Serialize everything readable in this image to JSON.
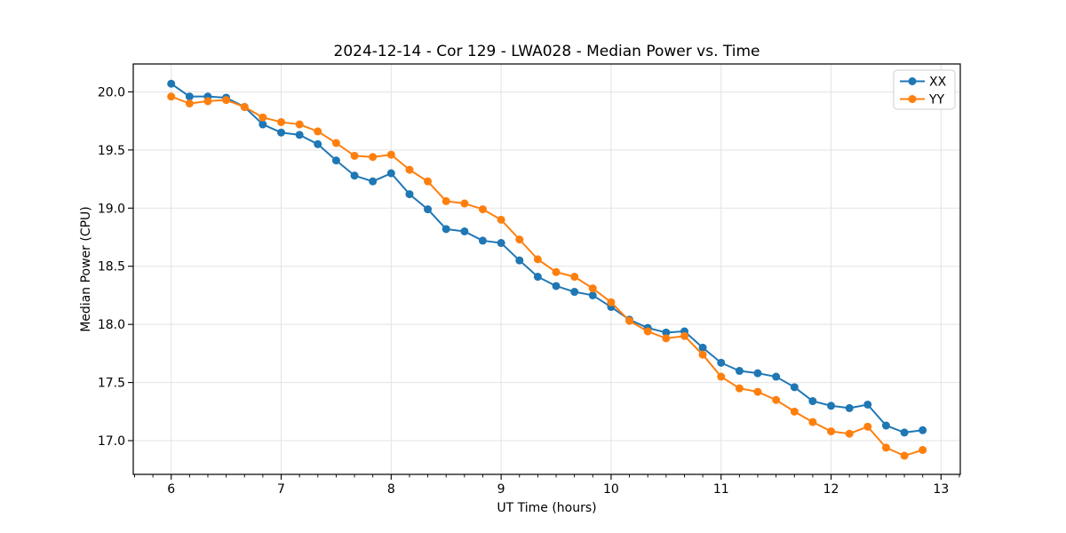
{
  "chart_data": {
    "type": "line",
    "title": "2024-12-14 - Cor 129 - LWA028 - Median Power vs. Time",
    "xlabel": "UT Time (hours)",
    "ylabel": "Median Power (CPU)",
    "xlim": [
      5.655,
      13.175
    ],
    "ylim": [
      16.71,
      20.24
    ],
    "xticks": [
      6,
      7,
      8,
      9,
      10,
      11,
      12,
      13
    ],
    "yticks": [
      17.0,
      17.5,
      18.0,
      18.5,
      19.0,
      19.5,
      20.0
    ],
    "x_minor_interval": 0.166667,
    "grid": "major-only",
    "grid_color": "#e3e3e3",
    "spine_color": "#000000",
    "legend_position": "upper-right",
    "x": [
      6.0,
      6.167,
      6.333,
      6.5,
      6.667,
      6.833,
      7.0,
      7.167,
      7.333,
      7.5,
      7.667,
      7.833,
      8.0,
      8.167,
      8.333,
      8.5,
      8.667,
      8.833,
      9.0,
      9.167,
      9.333,
      9.5,
      9.667,
      9.833,
      10.0,
      10.167,
      10.333,
      10.5,
      10.667,
      10.833,
      11.0,
      11.167,
      11.333,
      11.5,
      11.667,
      11.833,
      12.0,
      12.167,
      12.333,
      12.5,
      12.667,
      12.833
    ],
    "series": [
      {
        "name": "XX",
        "color": "#1f77b4",
        "marker": "circle",
        "values": [
          20.07,
          19.96,
          19.96,
          19.95,
          19.87,
          19.72,
          19.65,
          19.63,
          19.55,
          19.41,
          19.28,
          19.23,
          19.3,
          19.12,
          18.99,
          18.82,
          18.8,
          18.72,
          18.7,
          18.55,
          18.41,
          18.33,
          18.28,
          18.25,
          18.15,
          18.04,
          17.97,
          17.93,
          17.94,
          17.8,
          17.67,
          17.6,
          17.58,
          17.55,
          17.46,
          17.34,
          17.3,
          17.28,
          17.31,
          17.13,
          17.07,
          17.09
        ]
      },
      {
        "name": "YY",
        "color": "#ff7f0e",
        "marker": "circle",
        "values": [
          19.96,
          19.9,
          19.92,
          19.93,
          19.87,
          19.78,
          19.74,
          19.72,
          19.66,
          19.56,
          19.45,
          19.44,
          19.46,
          19.33,
          19.23,
          19.06,
          19.04,
          18.99,
          18.9,
          18.73,
          18.56,
          18.45,
          18.41,
          18.31,
          18.19,
          18.03,
          17.94,
          17.88,
          17.9,
          17.74,
          17.55,
          17.45,
          17.42,
          17.35,
          17.25,
          17.16,
          17.08,
          17.06,
          17.12,
          16.94,
          16.87,
          16.92
        ]
      }
    ]
  }
}
